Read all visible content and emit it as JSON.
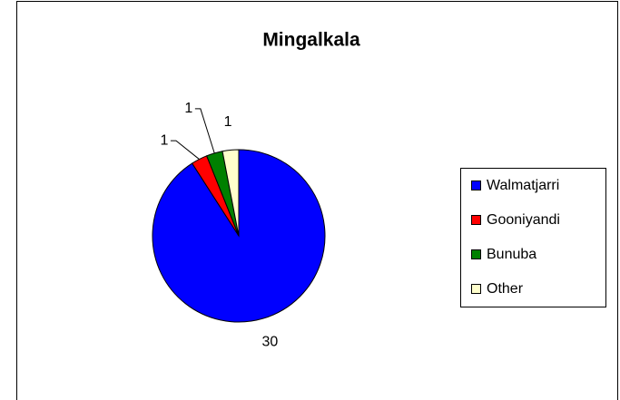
{
  "chart_data": {
    "type": "pie",
    "title": "Mingalkala",
    "categories": [
      "Walmatjarri",
      "Gooniyandi",
      "Bunuba",
      "Other"
    ],
    "values": [
      30,
      1,
      1,
      1
    ],
    "colors": [
      "#0000ff",
      "#ff0000",
      "#008000",
      "#ffffcc"
    ],
    "legend": "right"
  }
}
